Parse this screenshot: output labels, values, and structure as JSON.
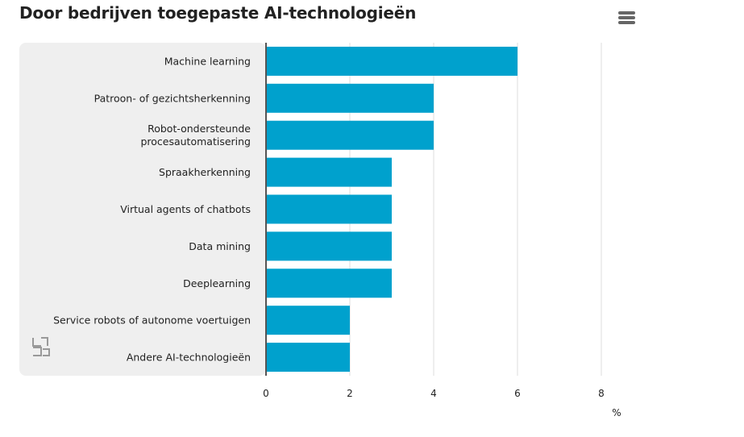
{
  "menu_icon": "hamburger-menu-icon",
  "logo_icon": "cbs-logo-icon",
  "colors": {
    "bar": "#00a1cd",
    "label_panel": "#efefef",
    "grid": "#dddddd",
    "axis": "#555555"
  },
  "chart_data": {
    "type": "bar",
    "orientation": "horizontal",
    "title": "Door bedrijven toegepaste AI-technologieën",
    "xlabel": "%",
    "ylabel": "",
    "xlim": [
      0,
      8
    ],
    "xticks": [
      0,
      2,
      4,
      6,
      8
    ],
    "grid": true,
    "categories": [
      [
        "Machine learning"
      ],
      [
        "Patroon- of gezichtsherkenning"
      ],
      [
        "Robot-ondersteunde",
        "procesautomatisering"
      ],
      [
        "Spraakherkenning"
      ],
      [
        "Virtual agents of chatbots"
      ],
      [
        "Data mining"
      ],
      [
        "Deeplearning"
      ],
      [
        "Service robots of autonome voertuigen"
      ],
      [
        "Andere AI-technologieën"
      ]
    ],
    "values": [
      6,
      4,
      4,
      3,
      3,
      3,
      3,
      2,
      2
    ]
  }
}
